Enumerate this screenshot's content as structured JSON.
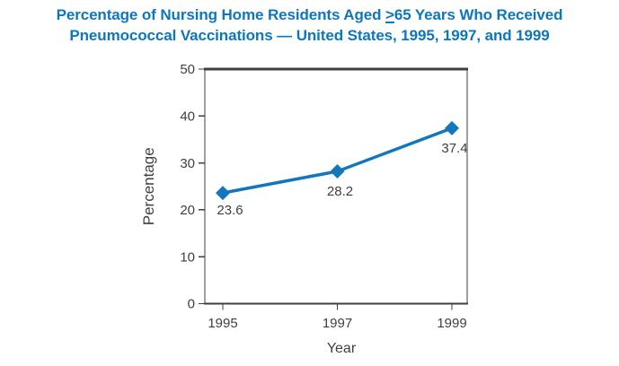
{
  "title": {
    "line1_pre": "Percentage of Nursing Home Residents Aged ",
    "line1_underlined": ">",
    "line1_post": "65 Years Who Received",
    "line2": "Pneumococcal Vaccinations — United States, 1995, 1997, and 1999"
  },
  "colors": {
    "title_blue": "#0e76bd",
    "accent_blue": "#1377bd",
    "axis_gray": "#3f3f3f"
  },
  "chart_data": {
    "type": "line",
    "title": "Percentage of Nursing Home Residents Aged >=65 Years Who Received Pneumococcal Vaccinations — United States, 1995, 1997, and 1999",
    "categories": [
      "1995",
      "1997",
      "1999"
    ],
    "values": [
      23.6,
      28.2,
      37.4
    ],
    "point_labels": [
      "23.6",
      "28.2",
      "37.4"
    ],
    "xlabel": "Year",
    "ylabel": "Percentage",
    "ylim": [
      0,
      50
    ],
    "yticks": [
      0,
      10,
      20,
      30,
      40,
      50
    ],
    "grid": false,
    "legend": false,
    "marker": "diamond"
  }
}
